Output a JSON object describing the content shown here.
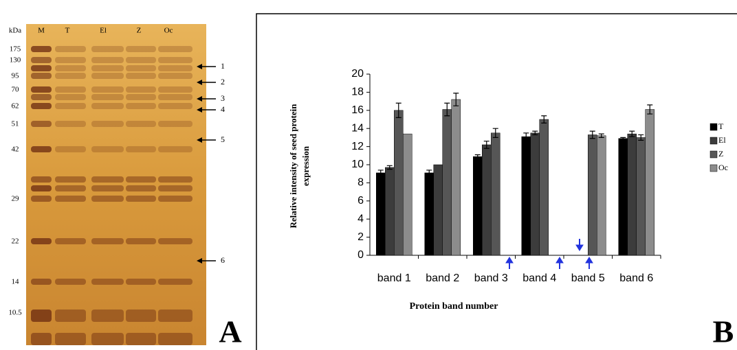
{
  "panel_a": {
    "label": "A",
    "lane_header": [
      "kDa",
      "M",
      "T",
      "El",
      "Z",
      "Oc"
    ],
    "markers": [
      175,
      130,
      95,
      70,
      62,
      51,
      42,
      29,
      22,
      14,
      10.5
    ],
    "arrows": [
      "1",
      "2",
      "3",
      "4",
      "5",
      "6"
    ]
  },
  "chart_data": {
    "type": "bar",
    "panel_label": "B",
    "y_label": [
      "Relative intensity of seed protein",
      "expression"
    ],
    "x_label": "Protein band number",
    "categories": [
      "band 1",
      "band 2",
      "band 3",
      "band 4",
      "band 5",
      "band 6"
    ],
    "series": [
      {
        "name": "T",
        "color": "#000000",
        "values": [
          9.1,
          9.1,
          10.9,
          13.1,
          null,
          12.9
        ],
        "errors": [
          0.3,
          0.3,
          0.2,
          0.4,
          null,
          0.1
        ]
      },
      {
        "name": "El",
        "color": "#3c3c3c",
        "values": [
          9.7,
          10.0,
          12.2,
          13.5,
          null,
          13.4
        ],
        "errors": [
          0.2,
          null,
          0.4,
          0.2,
          null,
          0.3
        ]
      },
      {
        "name": "Z",
        "color": "#565656",
        "values": [
          16.0,
          16.1,
          13.5,
          15.0,
          13.3,
          13.0
        ],
        "errors": [
          0.8,
          0.7,
          0.5,
          0.4,
          0.4,
          0.3
        ]
      },
      {
        "name": "Oc",
        "color": "#8c8c8c",
        "values": [
          13.4,
          17.2,
          null,
          null,
          13.2,
          16.1
        ],
        "errors": [
          null,
          0.7,
          null,
          null,
          0.2,
          0.5
        ]
      }
    ],
    "ylim": [
      0,
      20
    ],
    "yticks": [
      0,
      2,
      4,
      6,
      8,
      10,
      12,
      14,
      16,
      18,
      20
    ]
  }
}
